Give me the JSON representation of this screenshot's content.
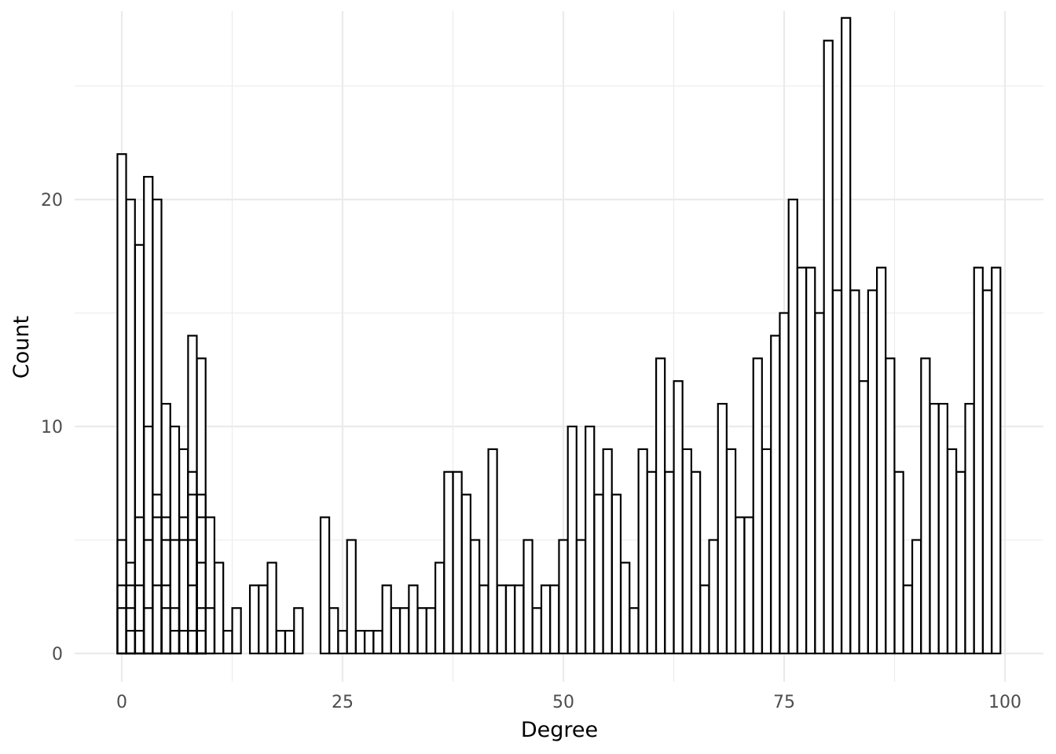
{
  "chart_data": {
    "type": "bar",
    "title": "",
    "xlabel": "Degree",
    "ylabel": "Count",
    "xlim": [
      0,
      100
    ],
    "ylim": [
      0,
      27
    ],
    "x_ticks": [
      0,
      25,
      50,
      75,
      100
    ],
    "y_ticks": [
      0,
      10,
      20
    ],
    "grid": true,
    "bar_fill": "#ffffff",
    "bar_stroke": "#000000",
    "grid_color": "#ebebeb",
    "categories": [
      0,
      1,
      2,
      3,
      4,
      5,
      6,
      7,
      8,
      9,
      10,
      11,
      12,
      13,
      14,
      15,
      16,
      17,
      18,
      19,
      20,
      21,
      22,
      23,
      24,
      25,
      26,
      27,
      28,
      29,
      30,
      31,
      32,
      33,
      34,
      35,
      36,
      37,
      38,
      39,
      40,
      41,
      42,
      43,
      44,
      45,
      46,
      47,
      48,
      49,
      50,
      51,
      52,
      53,
      54,
      55,
      56,
      57,
      58,
      59,
      60,
      61,
      62,
      63,
      64,
      65,
      66,
      67,
      68,
      69,
      70,
      71,
      72,
      73,
      74,
      75,
      76,
      77,
      78,
      79,
      80,
      81,
      82,
      83,
      84,
      85,
      86,
      87,
      88,
      89,
      90,
      91,
      92,
      93,
      94,
      95,
      96,
      97,
      98,
      99
    ],
    "series": [
      {
        "values": [
          22,
          20,
          18,
          21,
          20,
          11,
          10,
          9,
          14,
          13,
          6,
          4,
          1,
          2,
          0,
          3,
          3,
          4,
          1,
          1,
          2,
          0,
          0,
          6,
          2,
          1,
          5,
          1,
          1,
          1,
          3,
          2,
          2,
          3,
          2,
          2,
          4,
          8,
          8,
          7,
          5,
          3,
          9,
          3,
          3,
          3,
          5,
          2,
          3,
          3,
          5,
          10,
          5,
          10,
          7,
          9,
          7,
          4,
          2,
          9,
          8,
          13,
          8,
          12,
          9,
          8,
          3,
          5,
          11,
          9,
          6,
          6,
          13,
          9,
          14,
          15,
          20,
          17,
          17,
          15,
          27,
          16,
          28,
          16,
          12,
          16,
          17,
          13,
          8,
          3,
          5,
          13,
          11,
          11,
          9,
          8,
          11,
          17,
          16,
          17
        ]
      },
      {
        "values": [
          5,
          4,
          6,
          10,
          7,
          6,
          5,
          6,
          8,
          7,
          2,
          0,
          0,
          0,
          0,
          0,
          0,
          0,
          0,
          0,
          0,
          0,
          0,
          0,
          0,
          0,
          0,
          0,
          0,
          0,
          0,
          0,
          0,
          0,
          0,
          0,
          0,
          0,
          0,
          0,
          0,
          0,
          0,
          0,
          0,
          0,
          0,
          0,
          0,
          0,
          0,
          0,
          0,
          0,
          0,
          0,
          0,
          0,
          0,
          0,
          0,
          0,
          0,
          0,
          0,
          0,
          0,
          0,
          0,
          0,
          0,
          0,
          0,
          0,
          0,
          0,
          0,
          0,
          0,
          0,
          0,
          0,
          0,
          0,
          0,
          0,
          0,
          0,
          0,
          0,
          0,
          0,
          0,
          0,
          0,
          0,
          0,
          0,
          0,
          0
        ]
      },
      {
        "values": [
          3,
          3,
          3,
          5,
          6,
          5,
          2,
          5,
          7,
          6,
          0,
          0,
          0,
          0,
          0,
          0,
          0,
          0,
          0,
          0,
          0,
          0,
          0,
          0,
          0,
          0,
          0,
          0,
          0,
          0,
          0,
          0,
          0,
          0,
          0,
          0,
          0,
          0,
          0,
          0,
          0,
          0,
          0,
          0,
          0,
          0,
          0,
          0,
          0,
          0,
          0,
          0,
          0,
          0,
          0,
          0,
          0,
          0,
          0,
          0,
          0,
          0,
          0,
          0,
          0,
          0,
          0,
          0,
          0,
          0,
          0,
          0,
          0,
          0,
          0,
          0,
          0,
          0,
          0,
          0,
          0,
          0,
          0,
          0,
          0,
          0,
          0,
          0,
          0,
          0,
          0,
          0,
          0,
          0,
          0,
          0,
          0,
          0,
          0,
          0
        ]
      },
      {
        "values": [
          2,
          2,
          1,
          2,
          3,
          3,
          1,
          1,
          5,
          4,
          0,
          0,
          0,
          0,
          0,
          0,
          0,
          0,
          0,
          0,
          0,
          0,
          0,
          0,
          0,
          0,
          0,
          0,
          0,
          0,
          0,
          0,
          0,
          0,
          0,
          0,
          0,
          0,
          0,
          0,
          0,
          0,
          0,
          0,
          0,
          0,
          0,
          0,
          0,
          0,
          0,
          0,
          0,
          0,
          0,
          0,
          0,
          0,
          0,
          0,
          0,
          0,
          0,
          0,
          0,
          0,
          0,
          0,
          0,
          0,
          0,
          0,
          0,
          0,
          0,
          0,
          0,
          0,
          0,
          0,
          0,
          0,
          0,
          0,
          0,
          0,
          0,
          0,
          0,
          0,
          0,
          0,
          0,
          0,
          0,
          0,
          0,
          0,
          0,
          0
        ]
      },
      {
        "values": [
          0,
          1,
          0,
          0,
          0,
          2,
          0,
          0,
          3,
          2,
          0,
          0,
          0,
          0,
          0,
          0,
          0,
          0,
          0,
          0,
          0,
          0,
          0,
          0,
          0,
          0,
          0,
          0,
          0,
          0,
          0,
          0,
          0,
          0,
          0,
          0,
          0,
          0,
          0,
          0,
          0,
          0,
          0,
          0,
          0,
          0,
          0,
          0,
          0,
          0,
          0,
          0,
          0,
          0,
          0,
          0,
          0,
          0,
          0,
          0,
          0,
          0,
          0,
          0,
          0,
          0,
          0,
          0,
          0,
          0,
          0,
          0,
          0,
          0,
          0,
          0,
          0,
          0,
          0,
          0,
          0,
          0,
          0,
          0,
          0,
          0,
          0,
          0,
          0,
          0,
          0,
          0,
          0,
          0,
          0,
          0,
          0,
          0,
          0,
          0
        ]
      },
      {
        "values": [
          0,
          0,
          0,
          0,
          0,
          0,
          0,
          0,
          1,
          1,
          0,
          0,
          0,
          0,
          0,
          0,
          0,
          0,
          0,
          0,
          0,
          0,
          0,
          0,
          0,
          0,
          0,
          0,
          0,
          0,
          0,
          0,
          0,
          0,
          0,
          0,
          0,
          0,
          0,
          0,
          0,
          0,
          0,
          0,
          0,
          0,
          0,
          0,
          0,
          0,
          0,
          0,
          0,
          0,
          0,
          0,
          0,
          0,
          0,
          0,
          0,
          0,
          0,
          0,
          0,
          0,
          0,
          0,
          0,
          0,
          0,
          0,
          0,
          0,
          0,
          0,
          0,
          0,
          0,
          0,
          0,
          0,
          0,
          0,
          0,
          0,
          0,
          0,
          0,
          0,
          0,
          0,
          0,
          0,
          0,
          0,
          0,
          0,
          0,
          0
        ]
      }
    ]
  }
}
